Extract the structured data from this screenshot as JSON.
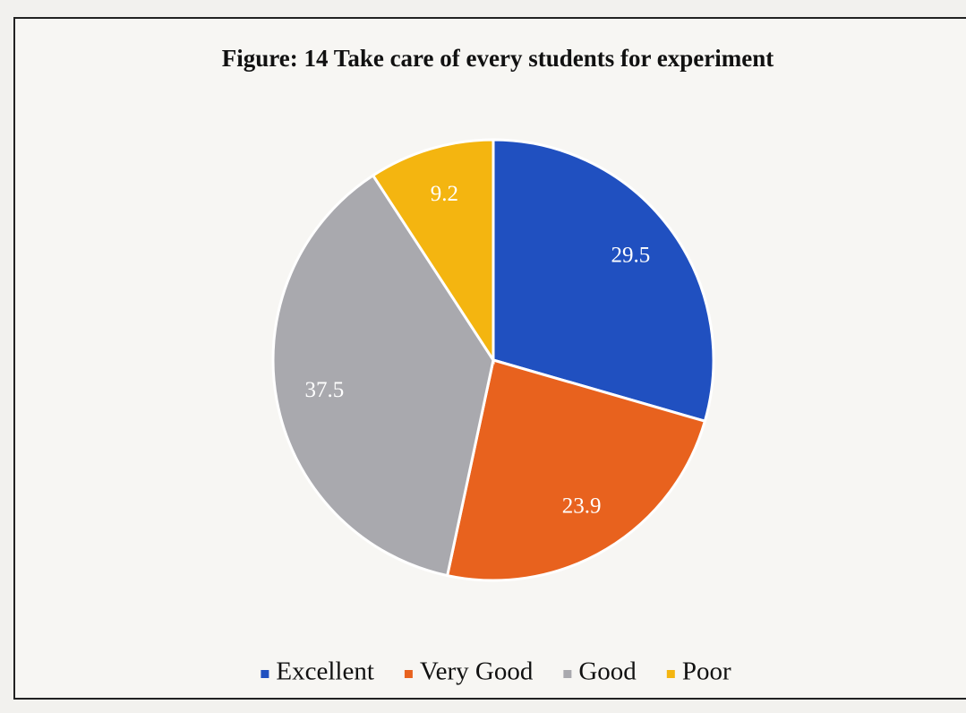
{
  "chart_data": {
    "type": "pie",
    "title": "Figure: 14 Take care of every students for experiment",
    "categories": [
      "Excellent",
      "Very Good",
      "Good",
      "Poor"
    ],
    "values": [
      29.5,
      23.9,
      37.5,
      9.2
    ],
    "colors": [
      "#2050c0",
      "#e8621e",
      "#a9a9ae",
      "#f4b510"
    ],
    "legend": "bottom"
  }
}
